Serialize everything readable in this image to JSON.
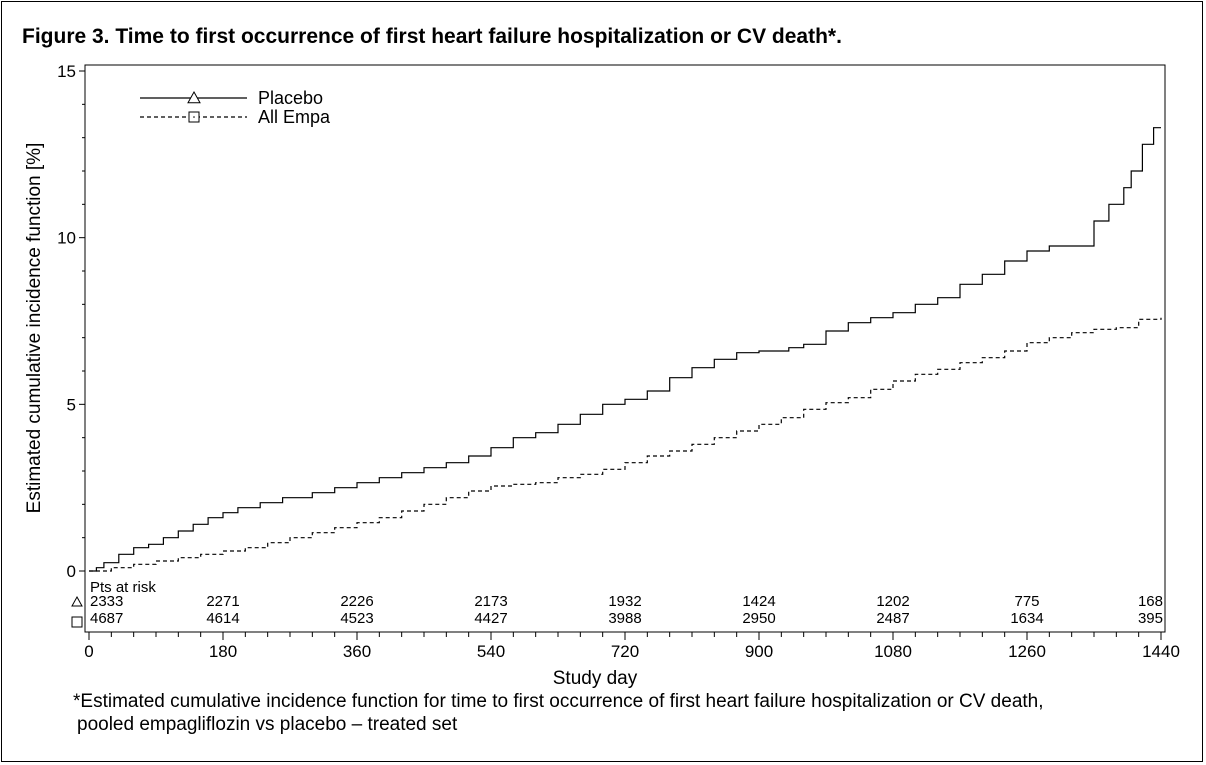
{
  "figure_title": "Figure 3. Time to first occurrence of first heart failure hospitalization or CV death*.",
  "footnote": {
    "line1": "*Estimated cumulative incidence function for time to first occurrence of first heart failure hospitalization or CV death,",
    "line2": "pooled empagliflozin vs placebo – treated set"
  },
  "chart_data": {
    "type": "line",
    "title": "Figure 3. Time to first occurrence of first heart failure hospitalization or CV death*.",
    "xlabel": "Study day",
    "ylabel": "Estimated cumulative incidence function [%]",
    "xlim": [
      0,
      1440
    ],
    "ylim": [
      0,
      15
    ],
    "x_ticks": [
      0,
      180,
      360,
      540,
      720,
      900,
      1080,
      1260,
      1440
    ],
    "y_ticks": [
      0,
      5,
      10,
      15
    ],
    "grid": false,
    "legend_position": "top-left",
    "step": true,
    "series": [
      {
        "name": "Placebo",
        "line_style": "solid",
        "marker": "triangle",
        "points": [
          [
            0,
            0
          ],
          [
            10,
            0.1
          ],
          [
            20,
            0.25
          ],
          [
            40,
            0.5
          ],
          [
            60,
            0.7
          ],
          [
            80,
            0.8
          ],
          [
            100,
            1.0
          ],
          [
            120,
            1.2
          ],
          [
            140,
            1.4
          ],
          [
            160,
            1.6
          ],
          [
            180,
            1.75
          ],
          [
            200,
            1.9
          ],
          [
            230,
            2.05
          ],
          [
            260,
            2.2
          ],
          [
            300,
            2.35
          ],
          [
            330,
            2.5
          ],
          [
            360,
            2.65
          ],
          [
            390,
            2.8
          ],
          [
            420,
            2.95
          ],
          [
            450,
            3.1
          ],
          [
            480,
            3.25
          ],
          [
            510,
            3.45
          ],
          [
            540,
            3.7
          ],
          [
            570,
            4.0
          ],
          [
            600,
            4.15
          ],
          [
            630,
            4.4
          ],
          [
            660,
            4.7
          ],
          [
            690,
            5.0
          ],
          [
            720,
            5.15
          ],
          [
            750,
            5.4
          ],
          [
            780,
            5.8
          ],
          [
            810,
            6.1
          ],
          [
            840,
            6.35
          ],
          [
            870,
            6.55
          ],
          [
            900,
            6.6
          ],
          [
            940,
            6.7
          ],
          [
            960,
            6.8
          ],
          [
            990,
            7.2
          ],
          [
            1020,
            7.45
          ],
          [
            1050,
            7.6
          ],
          [
            1080,
            7.75
          ],
          [
            1110,
            8.0
          ],
          [
            1140,
            8.2
          ],
          [
            1170,
            8.6
          ],
          [
            1200,
            8.9
          ],
          [
            1230,
            9.3
          ],
          [
            1260,
            9.6
          ],
          [
            1290,
            9.75
          ],
          [
            1320,
            9.75
          ],
          [
            1350,
            10.5
          ],
          [
            1370,
            11.0
          ],
          [
            1390,
            11.5
          ],
          [
            1400,
            12.0
          ],
          [
            1415,
            12.8
          ],
          [
            1430,
            13.3
          ],
          [
            1440,
            13.3
          ]
        ]
      },
      {
        "name": "All Empa",
        "line_style": "dashed",
        "marker": "square",
        "points": [
          [
            0,
            0
          ],
          [
            30,
            0.1
          ],
          [
            60,
            0.2
          ],
          [
            90,
            0.3
          ],
          [
            120,
            0.4
          ],
          [
            150,
            0.5
          ],
          [
            180,
            0.6
          ],
          [
            210,
            0.7
          ],
          [
            240,
            0.85
          ],
          [
            270,
            1.0
          ],
          [
            300,
            1.15
          ],
          [
            330,
            1.3
          ],
          [
            360,
            1.45
          ],
          [
            390,
            1.6
          ],
          [
            420,
            1.8
          ],
          [
            450,
            2.0
          ],
          [
            480,
            2.2
          ],
          [
            510,
            2.4
          ],
          [
            540,
            2.55
          ],
          [
            570,
            2.6
          ],
          [
            600,
            2.65
          ],
          [
            630,
            2.8
          ],
          [
            660,
            2.9
          ],
          [
            690,
            3.05
          ],
          [
            720,
            3.25
          ],
          [
            750,
            3.45
          ],
          [
            780,
            3.6
          ],
          [
            810,
            3.8
          ],
          [
            840,
            4.0
          ],
          [
            870,
            4.2
          ],
          [
            900,
            4.4
          ],
          [
            930,
            4.6
          ],
          [
            960,
            4.85
          ],
          [
            990,
            5.05
          ],
          [
            1020,
            5.2
          ],
          [
            1050,
            5.45
          ],
          [
            1080,
            5.7
          ],
          [
            1110,
            5.9
          ],
          [
            1140,
            6.05
          ],
          [
            1170,
            6.25
          ],
          [
            1200,
            6.4
          ],
          [
            1230,
            6.6
          ],
          [
            1260,
            6.85
          ],
          [
            1290,
            7.0
          ],
          [
            1320,
            7.15
          ],
          [
            1350,
            7.25
          ],
          [
            1380,
            7.3
          ],
          [
            1410,
            7.55
          ],
          [
            1440,
            7.6
          ]
        ]
      }
    ],
    "risk_table": {
      "header": "Pts at risk",
      "days": [
        0,
        180,
        360,
        540,
        720,
        900,
        1080,
        1260,
        1440
      ],
      "rows": [
        {
          "series": "Placebo",
          "marker": "triangle",
          "values": [
            "2333",
            "2271",
            "2226",
            "2173",
            "1932",
            "1424",
            "1202",
            "775",
            "168"
          ]
        },
        {
          "series": "All Empa",
          "marker": "square",
          "values": [
            "4687",
            "4614",
            "4523",
            "4427",
            "3988",
            "2950",
            "2487",
            "1634",
            "395"
          ]
        }
      ]
    }
  }
}
